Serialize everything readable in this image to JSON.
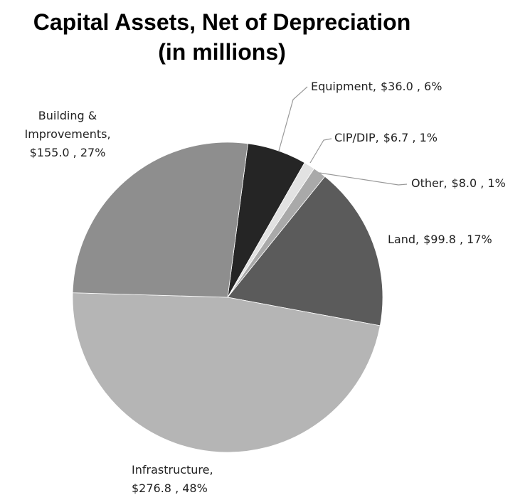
{
  "chart_data": {
    "type": "pie",
    "title": "Capital Assets, Net of Depreciation",
    "subtitle": "(in millions)",
    "categories": [
      "Equipment",
      "CIP/DIP",
      "Other",
      "Land",
      "Infrastructure",
      "Building & Improvements"
    ],
    "values": [
      36.0,
      6.7,
      8.0,
      99.8,
      276.8,
      155.0
    ],
    "value_labels": [
      "$36.0 , 6%",
      "$6.7 , 1%",
      "$8.0 , 1%",
      "$99.8 , 17%",
      "$276.8 , 48%",
      "$155.0 , 27%"
    ],
    "separator": ",",
    "colors": [
      "#252525",
      "#e2e2e2",
      "#a9a9a9",
      "#5b5b5b",
      "#b5b5b5",
      "#8e8e8e"
    ]
  }
}
